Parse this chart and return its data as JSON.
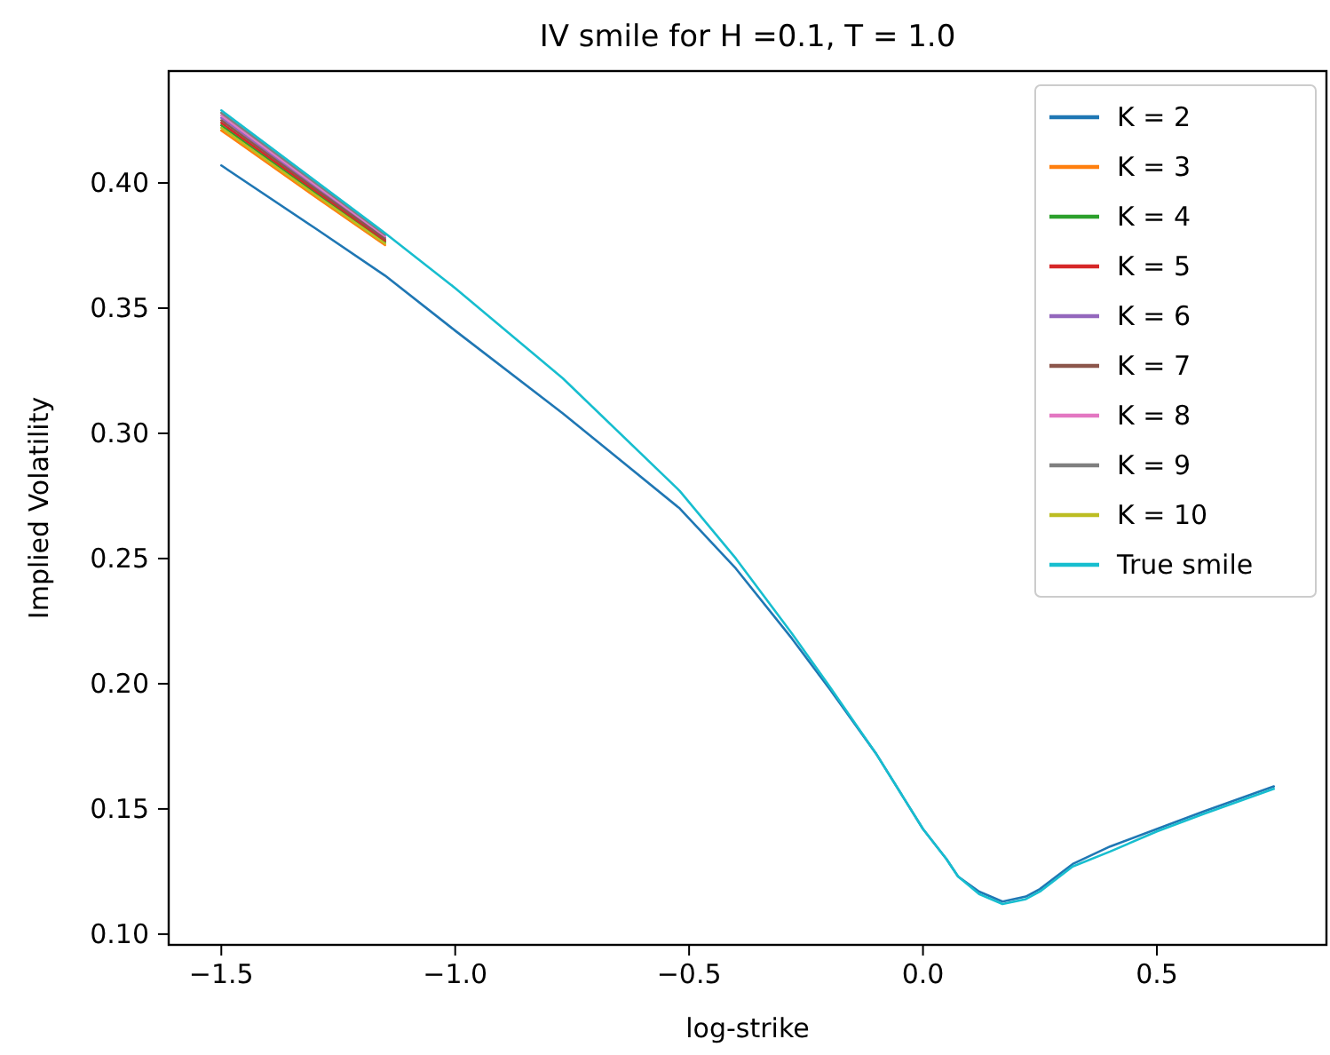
{
  "chart_data": {
    "type": "line",
    "title": "IV smile for H =0.1, T = 1.0",
    "xlabel": "log-strike",
    "ylabel": "Implied Volatility",
    "x": [
      -1.5,
      -1.3,
      -1.15,
      -1.0,
      -0.77,
      -0.52,
      -0.4,
      -0.28,
      -0.2,
      -0.1,
      0,
      0.05,
      0.075,
      0.12,
      0.17,
      0.22,
      0.25,
      0.32,
      0.4,
      0.5,
      0.6,
      0.75
    ],
    "series": [
      {
        "name": "K = 2",
        "color": "#1f77b4",
        "values": [
          0.407,
          0.382,
          0.363,
          0.341,
          0.308,
          0.27,
          0.246,
          0.218,
          0.198,
          0.172,
          0.142,
          0.13,
          0.123,
          0.117,
          0.113,
          0.115,
          0.118,
          0.128,
          0.135,
          0.142,
          0.149,
          0.159
        ]
      },
      {
        "name": "K = 3",
        "color": "#ff7f0e",
        "values": [
          0.421,
          0.3946,
          0.3752,
          null,
          null,
          null,
          null,
          null,
          null,
          null,
          null,
          null,
          null,
          null,
          null,
          null,
          null,
          null,
          null,
          null,
          null,
          null
        ]
      },
      {
        "name": "K = 4",
        "color": "#2ca02c",
        "values": [
          0.423,
          0.3962,
          0.3764,
          null,
          null,
          null,
          null,
          null,
          null,
          null,
          null,
          null,
          null,
          null,
          null,
          null,
          null,
          null,
          null,
          null,
          null,
          null
        ]
      },
      {
        "name": "K = 5",
        "color": "#d62728",
        "values": [
          0.424,
          0.397,
          0.377,
          null,
          null,
          null,
          null,
          null,
          null,
          null,
          null,
          null,
          null,
          null,
          null,
          null,
          null,
          null,
          null,
          null,
          null,
          null
        ]
      },
      {
        "name": "K = 6",
        "color": "#9467bd",
        "values": [
          0.426,
          0.3986,
          0.3782,
          null,
          null,
          null,
          null,
          null,
          null,
          null,
          null,
          null,
          null,
          null,
          null,
          null,
          null,
          null,
          null,
          null,
          null,
          null
        ]
      },
      {
        "name": "K = 7",
        "color": "#8c564b",
        "values": [
          0.425,
          0.3978,
          0.3776,
          null,
          null,
          null,
          null,
          null,
          null,
          null,
          null,
          null,
          null,
          null,
          null,
          null,
          null,
          null,
          null,
          null,
          null,
          null
        ]
      },
      {
        "name": "K = 8",
        "color": "#e377c2",
        "values": [
          0.427,
          0.3994,
          0.3788,
          null,
          null,
          null,
          null,
          null,
          null,
          null,
          null,
          null,
          null,
          null,
          null,
          null,
          null,
          null,
          null,
          null,
          null,
          null
        ]
      },
      {
        "name": "K = 9",
        "color": "#7f7f7f",
        "values": [
          0.428,
          0.4002,
          0.3794,
          null,
          null,
          null,
          null,
          null,
          null,
          null,
          null,
          null,
          null,
          null,
          null,
          null,
          null,
          null,
          null,
          null,
          null,
          null
        ]
      },
      {
        "name": "K = 10",
        "color": "#bcbd22",
        "values": [
          0.422,
          0.3954,
          0.3758,
          null,
          null,
          null,
          null,
          null,
          null,
          null,
          null,
          null,
          null,
          null,
          null,
          null,
          null,
          null,
          null,
          null,
          null,
          null
        ]
      },
      {
        "name": "True smile",
        "color": "#17becf",
        "values": [
          0.429,
          0.401,
          0.38,
          0.358,
          0.322,
          0.277,
          0.25,
          0.22,
          0.199,
          0.172,
          0.142,
          0.13,
          0.123,
          0.116,
          0.112,
          0.114,
          0.117,
          0.127,
          0.133,
          0.141,
          0.148,
          0.158
        ]
      }
    ],
    "xlim": [
      -1.6125,
      0.8625
    ],
    "xticks": [
      {
        "value": -1.5,
        "label": "−1.5"
      },
      {
        "value": -1.0,
        "label": "−1.0"
      },
      {
        "value": -0.5,
        "label": "−0.5"
      },
      {
        "value": 0,
        "label": "0.0"
      },
      {
        "value": 0.5,
        "label": "0.5"
      }
    ],
    "ylim": [
      0.0957,
      0.4447
    ],
    "yticks": [
      {
        "value": 0.1,
        "label": "0.10"
      },
      {
        "value": 0.15,
        "label": "0.15"
      },
      {
        "value": 0.2,
        "label": "0.20"
      },
      {
        "value": 0.25,
        "label": "0.25"
      },
      {
        "value": 0.3,
        "label": "0.30"
      },
      {
        "value": 0.35,
        "label": "0.35"
      },
      {
        "value": 0.4,
        "label": "0.40"
      }
    ],
    "grid": false,
    "legend": "top right",
    "line_style": "solid",
    "marker": "none"
  }
}
